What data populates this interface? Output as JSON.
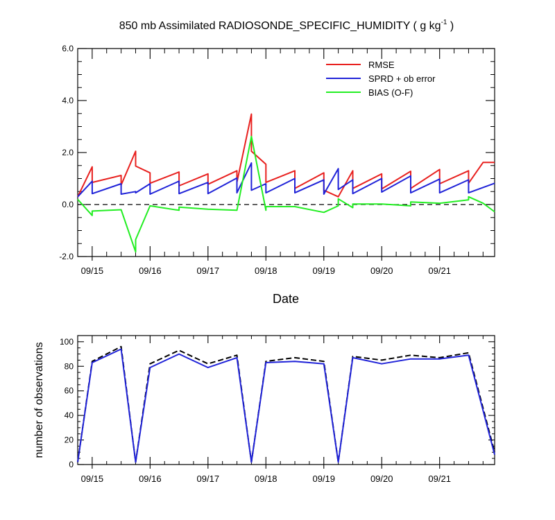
{
  "chart_data": [
    {
      "type": "line",
      "title": "850 mb Assimilated RADIOSONDE_SPECIFIC_HUMIDITY ( g kg",
      "title_superscript": "-1",
      "title_tail": " )",
      "xlabel": "Date",
      "ylabel": "",
      "xlim": [
        0.0,
        7.2
      ],
      "ylim": [
        -2.0,
        6.0
      ],
      "yticks": [
        "-2.0",
        "0.0",
        "2.0",
        "4.0",
        "6.0"
      ],
      "ytick_values": [
        -2.0,
        0.0,
        2.0,
        4.0,
        6.0
      ],
      "xtick_labels": [
        "09/15",
        "09/16",
        "09/17",
        "09/18",
        "09/19",
        "09/20",
        "09/21"
      ],
      "xtick_values": [
        0.25,
        1.25,
        2.25,
        3.25,
        4.25,
        5.25,
        6.25
      ],
      "zero_line": true,
      "grid": false,
      "legend_position": "top-right",
      "series": [
        {
          "name": "RMSE",
          "color": "#e8201e",
          "points": [
            [
              0.0,
              0.3
            ],
            [
              0.25,
              1.45
            ],
            [
              0.25,
              0.85
            ],
            [
              0.75,
              1.12
            ],
            [
              0.75,
              0.75
            ],
            [
              1.0,
              2.05
            ],
            [
              1.0,
              1.48
            ],
            [
              1.25,
              1.22
            ],
            [
              1.25,
              0.82
            ],
            [
              1.75,
              1.25
            ],
            [
              1.75,
              0.72
            ],
            [
              2.25,
              1.18
            ],
            [
              2.25,
              0.78
            ],
            [
              2.75,
              1.3
            ],
            [
              2.75,
              0.85
            ],
            [
              3.0,
              3.48
            ],
            [
              3.0,
              2.05
            ],
            [
              3.25,
              1.55
            ],
            [
              3.25,
              0.85
            ],
            [
              3.75,
              1.3
            ],
            [
              3.75,
              0.62
            ],
            [
              4.25,
              1.22
            ],
            [
              4.25,
              0.55
            ],
            [
              4.5,
              0.3
            ],
            [
              4.75,
              1.3
            ],
            [
              4.75,
              0.62
            ],
            [
              5.25,
              1.18
            ],
            [
              5.25,
              0.6
            ],
            [
              5.75,
              1.28
            ],
            [
              5.75,
              0.62
            ],
            [
              6.25,
              1.35
            ],
            [
              6.25,
              0.8
            ],
            [
              6.75,
              1.3
            ],
            [
              6.75,
              0.82
            ],
            [
              7.0,
              1.62
            ],
            [
              7.2,
              1.62
            ]
          ]
        },
        {
          "name": "SPRD + ob error",
          "color": "#1f22d8",
          "points": [
            [
              0.0,
              0.3
            ],
            [
              0.25,
              0.9
            ],
            [
              0.25,
              0.42
            ],
            [
              0.75,
              0.8
            ],
            [
              0.75,
              0.4
            ],
            [
              1.0,
              0.5
            ],
            [
              1.0,
              0.45
            ],
            [
              1.25,
              0.8
            ],
            [
              1.25,
              0.4
            ],
            [
              1.75,
              0.9
            ],
            [
              1.75,
              0.42
            ],
            [
              2.25,
              0.85
            ],
            [
              2.25,
              0.42
            ],
            [
              2.75,
              1.02
            ],
            [
              2.75,
              0.45
            ],
            [
              3.0,
              1.6
            ],
            [
              3.0,
              0.55
            ],
            [
              3.25,
              0.8
            ],
            [
              3.25,
              0.45
            ],
            [
              3.75,
              1.0
            ],
            [
              3.75,
              0.45
            ],
            [
              4.25,
              0.95
            ],
            [
              4.25,
              0.4
            ],
            [
              4.5,
              1.38
            ],
            [
              4.5,
              0.58
            ],
            [
              4.75,
              0.95
            ],
            [
              4.75,
              0.42
            ],
            [
              5.25,
              1.0
            ],
            [
              5.25,
              0.48
            ],
            [
              5.75,
              1.1
            ],
            [
              5.75,
              0.45
            ],
            [
              6.25,
              0.98
            ],
            [
              6.25,
              0.45
            ],
            [
              6.75,
              0.95
            ],
            [
              6.75,
              0.45
            ],
            [
              7.2,
              0.82
            ]
          ]
        },
        {
          "name": "BIAS (O-F)",
          "color": "#22ee22",
          "points": [
            [
              0.0,
              0.2
            ],
            [
              0.25,
              -0.42
            ],
            [
              0.25,
              -0.25
            ],
            [
              0.75,
              -0.2
            ],
            [
              1.0,
              -1.82
            ],
            [
              1.0,
              -1.35
            ],
            [
              1.25,
              -0.05
            ],
            [
              1.75,
              -0.22
            ],
            [
              1.75,
              -0.1
            ],
            [
              2.25,
              -0.18
            ],
            [
              2.75,
              -0.22
            ],
            [
              3.0,
              2.62
            ],
            [
              3.25,
              -0.22
            ],
            [
              3.25,
              -0.08
            ],
            [
              3.75,
              -0.08
            ],
            [
              4.25,
              -0.3
            ],
            [
              4.5,
              -0.05
            ],
            [
              4.5,
              0.22
            ],
            [
              4.75,
              -0.12
            ],
            [
              4.75,
              0.02
            ],
            [
              5.25,
              0.02
            ],
            [
              5.75,
              -0.05
            ],
            [
              5.75,
              0.1
            ],
            [
              6.25,
              0.05
            ],
            [
              6.75,
              0.18
            ],
            [
              6.75,
              0.3
            ],
            [
              7.0,
              0.05
            ],
            [
              7.2,
              -0.28
            ]
          ]
        }
      ]
    },
    {
      "type": "line",
      "title": "",
      "xlabel": "",
      "ylabel": "number of observations",
      "xlim": [
        0.0,
        7.2
      ],
      "ylim": [
        0,
        105
      ],
      "yticks": [
        "0",
        "20",
        "40",
        "60",
        "80",
        "100"
      ],
      "ytick_values": [
        0,
        20,
        40,
        60,
        80,
        100
      ],
      "xtick_labels": [
        "09/15",
        "09/16",
        "09/17",
        "09/18",
        "09/19",
        "09/20",
        "09/21"
      ],
      "xtick_values": [
        0.25,
        1.25,
        2.25,
        3.25,
        4.25,
        5.25,
        6.25
      ],
      "grid": false,
      "series": [
        {
          "style": "dashed",
          "color": "#000000",
          "points": [
            [
              0.0,
              2
            ],
            [
              0.25,
              84
            ],
            [
              0.75,
              96
            ],
            [
              1.0,
              2
            ],
            [
              1.25,
              82
            ],
            [
              1.75,
              93
            ],
            [
              2.25,
              82
            ],
            [
              2.75,
              89
            ],
            [
              3.0,
              2
            ],
            [
              3.25,
              84
            ],
            [
              3.75,
              87
            ],
            [
              4.25,
              84
            ],
            [
              4.5,
              2
            ],
            [
              4.75,
              88
            ],
            [
              5.25,
              85
            ],
            [
              5.75,
              89
            ],
            [
              6.25,
              87
            ],
            [
              6.75,
              91
            ],
            [
              7.2,
              10
            ]
          ]
        },
        {
          "style": "solid",
          "color": "#1f22d8",
          "points": [
            [
              0.0,
              2
            ],
            [
              0.25,
              83
            ],
            [
              0.75,
              94
            ],
            [
              1.0,
              2
            ],
            [
              1.25,
              79
            ],
            [
              1.75,
              90
            ],
            [
              2.25,
              79
            ],
            [
              2.75,
              87
            ],
            [
              3.0,
              2
            ],
            [
              3.25,
              83
            ],
            [
              3.75,
              84
            ],
            [
              4.25,
              82
            ],
            [
              4.5,
              2
            ],
            [
              4.75,
              87
            ],
            [
              5.25,
              82
            ],
            [
              5.75,
              86
            ],
            [
              6.25,
              86
            ],
            [
              6.75,
              89
            ],
            [
              7.2,
              8
            ]
          ]
        }
      ]
    }
  ]
}
